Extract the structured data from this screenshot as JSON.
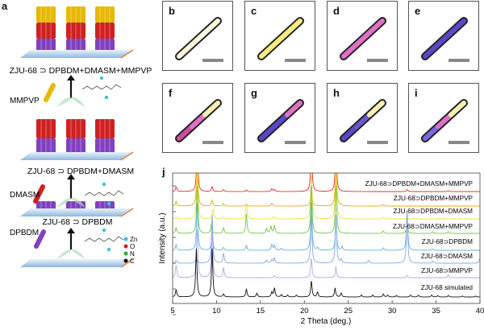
{
  "panels": {
    "a": "a",
    "micrographs": [
      {
        "label": "b",
        "segments": [
          "#fff8e0"
        ]
      },
      {
        "label": "c",
        "segments": [
          "#f6ec80"
        ]
      },
      {
        "label": "d",
        "segments": [
          "#e070c8"
        ]
      },
      {
        "label": "e",
        "segments": [
          "#5a48c8"
        ]
      },
      {
        "label": "f",
        "segments": [
          "#c8509a",
          "#e070c8",
          "#f8f0b0"
        ]
      },
      {
        "label": "g",
        "segments": [
          "#5a48c8",
          "#5a48c8",
          "#e070c8"
        ]
      },
      {
        "label": "h",
        "segments": [
          "#5a48c8",
          "#6a58d0",
          "#f8f0b0"
        ]
      },
      {
        "label": "i",
        "segments": [
          "#7a68e0",
          "#e070c8",
          "#f8f0b0"
        ]
      }
    ],
    "j": "j"
  },
  "diagram": {
    "stage3_label": "ZJU-68 ⊃ DPBDM+DMASM+MMPVP",
    "stage2_label": "ZJU-68 ⊃ DPBDM+DMASM",
    "stage1_label": "ZJU-68 ⊃ DPBDM",
    "dye3": "MMPVP",
    "dye2": "DMASM",
    "dye1": "DPBDM",
    "dye_colors": {
      "DPBDM": "#8040c0",
      "DMASM": "#d02020",
      "MMPVP": "#e8b800"
    },
    "legend": [
      {
        "label": "Zn",
        "color": "#40c0d8"
      },
      {
        "label": "O",
        "color": "#d02020"
      },
      {
        "label": "N",
        "color": "#30b030"
      },
      {
        "label": "C",
        "color": "#111111"
      }
    ]
  },
  "chart_data": {
    "type": "line",
    "xlabel": "2 Theta (deg.)",
    "ylabel": "Intensity (a.u.)",
    "xlim": [
      5,
      40
    ],
    "xticks": [
      "5",
      "10",
      "15",
      "20",
      "25",
      "30",
      "35",
      "40"
    ],
    "grid": false,
    "series": [
      {
        "name": "ZJU-68⊃DPBDM+DMASM+MMPVP",
        "color": "#e03030",
        "peaks": [
          [
            5.4,
            10
          ],
          [
            7.8,
            100
          ],
          [
            9.5,
            10
          ],
          [
            10.8,
            4
          ],
          [
            13.4,
            3
          ],
          [
            16.3,
            6
          ],
          [
            16.6,
            4
          ],
          [
            20.8,
            100
          ],
          [
            23.6,
            100
          ],
          [
            31.7,
            4
          ],
          [
            36.4,
            2
          ]
        ]
      },
      {
        "name": "ZJU-68⊃DPBDM+MMPVP",
        "color": "#f0a800",
        "peaks": [
          [
            5.4,
            10
          ],
          [
            7.8,
            100
          ],
          [
            9.5,
            12
          ],
          [
            10.8,
            5
          ],
          [
            13.4,
            4
          ],
          [
            16.3,
            6
          ],
          [
            20.8,
            40
          ],
          [
            23.6,
            100
          ],
          [
            24.2,
            3
          ],
          [
            29,
            3
          ]
        ]
      },
      {
        "name": "ZJU-68⊃DPBDM+DMASM",
        "color": "#f0e040",
        "peaks": [
          [
            5.4,
            4
          ],
          [
            7.8,
            100
          ],
          [
            9.6,
            20
          ],
          [
            10.8,
            3
          ],
          [
            13.4,
            30
          ],
          [
            16.5,
            5
          ],
          [
            20.8,
            100
          ],
          [
            23.6,
            100
          ],
          [
            29,
            3
          ]
        ]
      },
      {
        "name": "ZJU-68⊃DMASM+MMPVP",
        "color": "#70c840",
        "peaks": [
          [
            5.4,
            12
          ],
          [
            7.8,
            100
          ],
          [
            9.4,
            18
          ],
          [
            10.8,
            12
          ],
          [
            13.4,
            40
          ],
          [
            15.7,
            10
          ],
          [
            16.2,
            14
          ],
          [
            16.6,
            16
          ],
          [
            20.8,
            100
          ],
          [
            23.6,
            100
          ],
          [
            29,
            5
          ],
          [
            31.7,
            20
          ],
          [
            34.6,
            4
          ],
          [
            36.4,
            4
          ]
        ]
      },
      {
        "name": "ZJU-68⊃DPBDM",
        "color": "#60b0e0",
        "peaks": [
          [
            5.4,
            12
          ],
          [
            7.8,
            100
          ],
          [
            9.5,
            40
          ],
          [
            10.8,
            6
          ],
          [
            13.4,
            10
          ],
          [
            16.3,
            12
          ],
          [
            16.6,
            10
          ],
          [
            17.4,
            4
          ],
          [
            20.8,
            100
          ],
          [
            21.5,
            5
          ],
          [
            23.6,
            60
          ],
          [
            24.3,
            8
          ],
          [
            29,
            5
          ],
          [
            31.7,
            80
          ],
          [
            34.6,
            3
          ]
        ]
      },
      {
        "name": "ZJU-68⊃DMASM",
        "color": "#80a8e0",
        "peaks": [
          [
            5.4,
            6
          ],
          [
            7.7,
            12
          ],
          [
            9.5,
            100
          ],
          [
            10.8,
            20
          ],
          [
            15.7,
            6
          ],
          [
            16.3,
            8
          ],
          [
            16.6,
            10
          ],
          [
            20.8,
            100
          ],
          [
            23.6,
            100
          ],
          [
            24.2,
            8
          ],
          [
            27.3,
            6
          ],
          [
            31.7,
            100
          ],
          [
            34.6,
            4
          ],
          [
            40,
            10
          ]
        ]
      },
      {
        "name": "ZJU-68⊃MMPVP",
        "color": "#b0a8e8",
        "peaks": [
          [
            5.4,
            25
          ],
          [
            7.8,
            100
          ],
          [
            9.5,
            100
          ],
          [
            10.8,
            20
          ],
          [
            16.6,
            4
          ],
          [
            20.8,
            40
          ],
          [
            23.6,
            22
          ],
          [
            31.7,
            4
          ],
          [
            36.4,
            6
          ]
        ]
      },
      {
        "name": "ZJU-68 simulated",
        "color": "#111111",
        "peaks": [
          [
            5.4,
            15
          ],
          [
            7.7,
            100
          ],
          [
            9.5,
            100
          ],
          [
            10.8,
            6
          ],
          [
            13.4,
            16
          ],
          [
            14.6,
            8
          ],
          [
            16.3,
            10
          ],
          [
            16.6,
            18
          ],
          [
            17.4,
            5
          ],
          [
            18.1,
            4
          ],
          [
            19.1,
            4
          ],
          [
            20.8,
            33
          ],
          [
            21.5,
            10
          ],
          [
            23.5,
            18
          ],
          [
            24.2,
            8
          ],
          [
            26.5,
            4
          ],
          [
            27.8,
            4
          ],
          [
            29,
            6
          ],
          [
            29.5,
            4
          ],
          [
            30.5,
            3
          ],
          [
            32.1,
            4
          ],
          [
            33,
            4
          ],
          [
            34.5,
            4
          ],
          [
            35.2,
            3
          ],
          [
            36.4,
            3
          ],
          [
            38,
            2
          ],
          [
            39.5,
            2
          ]
        ]
      }
    ]
  }
}
